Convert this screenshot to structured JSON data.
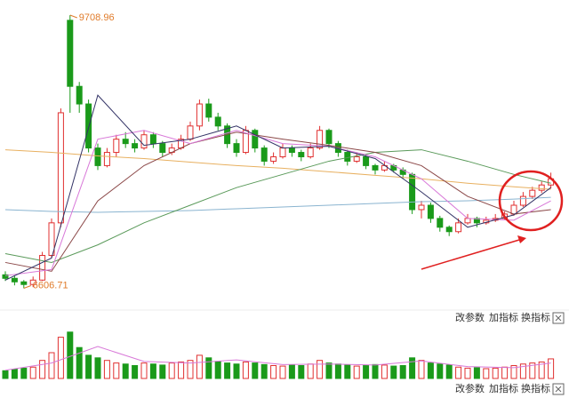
{
  "chart_data": [
    {
      "type": "candlestick",
      "up_color": "#e03030",
      "down_color": "#1a9a1a",
      "annotation_color": "#e07b2a",
      "ylim": [
        6400,
        9800
      ],
      "ohlc": [
        [
          6760,
          6800,
          6690,
          6720
        ],
        [
          6720,
          6750,
          6640,
          6680
        ],
        [
          6680,
          6700,
          6606.71,
          6650
        ],
        [
          6650,
          6740,
          6620,
          6700
        ],
        [
          6700,
          7020,
          6690,
          6980
        ],
        [
          6980,
          7400,
          6950,
          7350
        ],
        [
          7350,
          8650,
          7300,
          8600
        ],
        [
          9650,
          9708.96,
          8600,
          8900
        ],
        [
          8900,
          8950,
          8600,
          8700
        ],
        [
          8700,
          8750,
          8150,
          8200
        ],
        [
          8200,
          8250,
          7950,
          8000
        ],
        [
          8000,
          8200,
          7980,
          8150
        ],
        [
          8150,
          8350,
          8100,
          8300
        ],
        [
          8300,
          8380,
          8200,
          8250
        ],
        [
          8250,
          8300,
          8150,
          8200
        ],
        [
          8200,
          8400,
          8180,
          8350
        ],
        [
          8350,
          8380,
          8200,
          8250
        ],
        [
          8250,
          8280,
          8100,
          8150
        ],
        [
          8150,
          8250,
          8120,
          8200
        ],
        [
          8200,
          8350,
          8180,
          8300
        ],
        [
          8300,
          8500,
          8280,
          8450
        ],
        [
          8450,
          8750,
          8400,
          8700
        ],
        [
          8700,
          8760,
          8500,
          8550
        ],
        [
          8550,
          8600,
          8400,
          8450
        ],
        [
          8450,
          8480,
          8200,
          8250
        ],
        [
          8250,
          8300,
          8100,
          8150
        ],
        [
          8150,
          8450,
          8130,
          8400
        ],
        [
          8400,
          8420,
          8150,
          8200
        ],
        [
          8200,
          8230,
          8000,
          8050
        ],
        [
          8050,
          8150,
          8020,
          8100
        ],
        [
          8100,
          8250,
          8080,
          8200
        ],
        [
          8200,
          8230,
          8100,
          8150
        ],
        [
          8150,
          8180,
          8050,
          8100
        ],
        [
          8100,
          8250,
          8080,
          8200
        ],
        [
          8200,
          8450,
          8180,
          8400
        ],
        [
          8400,
          8420,
          8200,
          8250
        ],
        [
          8250,
          8280,
          8100,
          8150
        ],
        [
          8150,
          8180,
          8000,
          8050
        ],
        [
          8050,
          8150,
          8030,
          8100
        ],
        [
          8100,
          8120,
          7960,
          8000
        ],
        [
          8000,
          8020,
          7900,
          7950
        ],
        [
          7950,
          8050,
          7930,
          8000
        ],
        [
          8000,
          8020,
          7920,
          7950
        ],
        [
          7950,
          7980,
          7850,
          7900
        ],
        [
          7900,
          7920,
          7450,
          7500
        ],
        [
          7500,
          7600,
          7400,
          7550
        ],
        [
          7550,
          7580,
          7350,
          7400
        ],
        [
          7400,
          7430,
          7250,
          7300
        ],
        [
          7300,
          7320,
          7200,
          7250
        ],
        [
          7250,
          7400,
          7230,
          7350
        ],
        [
          7350,
          7450,
          7330,
          7400
        ],
        [
          7400,
          7420,
          7300,
          7350
        ],
        [
          7350,
          7420,
          7330,
          7380
        ],
        [
          7380,
          7450,
          7360,
          7400
        ],
        [
          7400,
          7480,
          7380,
          7450
        ],
        [
          7450,
          7600,
          7430,
          7550
        ],
        [
          7550,
          7700,
          7530,
          7650
        ],
        [
          7650,
          7760,
          7620,
          7720
        ],
        [
          7720,
          7820,
          7690,
          7780
        ],
        [
          7780,
          7920,
          7740,
          7850
        ]
      ],
      "series": [
        {
          "color": "#e8b060",
          "x": [
            0,
            5,
            10,
            15,
            20,
            25,
            30,
            35,
            40,
            45,
            50,
            55,
            59
          ],
          "values": [
            8180,
            8150,
            8110,
            8080,
            8040,
            8000,
            7970,
            7930,
            7890,
            7850,
            7800,
            7760,
            7730
          ]
        },
        {
          "color": "#8ab4d0",
          "x": [
            0,
            5,
            10,
            15,
            20,
            25,
            30,
            35,
            40,
            45,
            50,
            55,
            59
          ],
          "values": [
            7500,
            7480,
            7470,
            7480,
            7490,
            7510,
            7530,
            7550,
            7570,
            7590,
            7600,
            7620,
            7640
          ]
        },
        {
          "color": "#5a9a5a",
          "x": [
            0,
            5,
            10,
            15,
            20,
            25,
            30,
            35,
            40,
            45,
            50,
            55,
            59
          ],
          "values": [
            7000,
            6900,
            7100,
            7350,
            7550,
            7750,
            7900,
            8050,
            8150,
            8180,
            8050,
            7900,
            7800
          ]
        },
        {
          "color": "#8b4848",
          "x": [
            0,
            5,
            10,
            15,
            20,
            25,
            30,
            35,
            40,
            45,
            50,
            55,
            59
          ],
          "values": [
            6900,
            6800,
            7600,
            8000,
            8250,
            8380,
            8300,
            8230,
            8150,
            8000,
            7650,
            7450,
            7500
          ]
        },
        {
          "color": "#d878d8",
          "x": [
            0,
            5,
            10,
            15,
            20,
            25,
            30,
            35,
            40,
            45,
            50,
            55,
            59
          ],
          "values": [
            6750,
            6820,
            8300,
            8400,
            8250,
            8400,
            8250,
            8220,
            8100,
            7850,
            7400,
            7380,
            7600
          ]
        },
        {
          "color": "#333366",
          "x": [
            0,
            5,
            10,
            15,
            20,
            25,
            30,
            35,
            40,
            45,
            50,
            55,
            59
          ],
          "values": [
            6700,
            6950,
            8800,
            8230,
            8300,
            8450,
            8200,
            8220,
            8080,
            7700,
            7300,
            7440,
            7750
          ]
        }
      ]
    },
    {
      "type": "bar",
      "ylim": [
        0,
        100
      ],
      "values": [
        15,
        18,
        20,
        22,
        35,
        50,
        80,
        90,
        60,
        45,
        40,
        35,
        30,
        28,
        25,
        30,
        28,
        26,
        30,
        32,
        35,
        45,
        40,
        33,
        30,
        28,
        32,
        30,
        27,
        25,
        24,
        26,
        25,
        28,
        35,
        30,
        28,
        26,
        24,
        25,
        27,
        26,
        24,
        25,
        40,
        35,
        30,
        28,
        26,
        22,
        20,
        21,
        19,
        20,
        22,
        25,
        28,
        30,
        32,
        38
      ],
      "series": [
        {
          "color": "#d878d8",
          "x": [
            0,
            5,
            10,
            15,
            20,
            25,
            30,
            35,
            40,
            45,
            50,
            55,
            59
          ],
          "values": [
            16,
            30,
            62,
            33,
            30,
            36,
            27,
            28,
            26,
            34,
            23,
            21,
            30
          ]
        }
      ]
    }
  ],
  "toolbar": [
    "改参数",
    "加指标",
    "换指标"
  ]
}
